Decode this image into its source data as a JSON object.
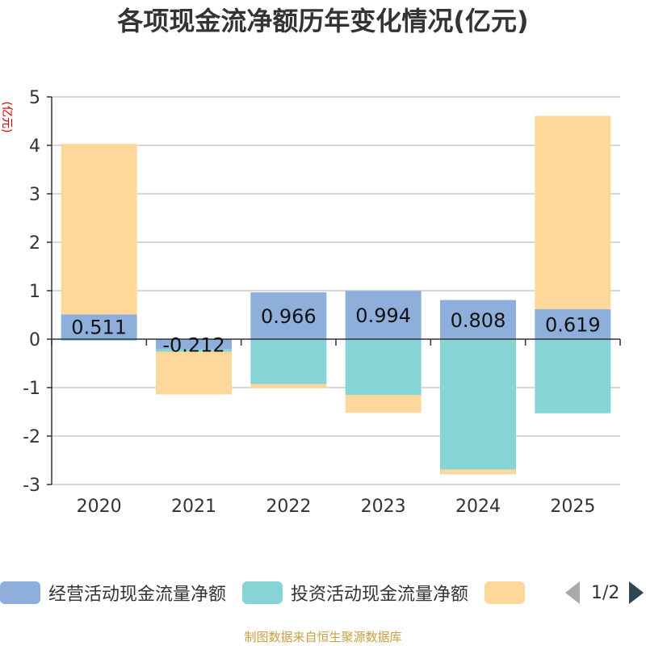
{
  "chart_data": {
    "type": "bar",
    "stacked": true,
    "title": "各项现金流净额历年变化情况(亿元)",
    "ylabel": "(亿元)",
    "xlabel": "",
    "ylim": [
      -3,
      5
    ],
    "yticks": [
      5,
      4,
      3,
      2,
      1,
      0,
      -1,
      -2,
      -3
    ],
    "categories": [
      "2020",
      "2021",
      "2022",
      "2023",
      "2024",
      "2025"
    ],
    "series": [
      {
        "name": "经营活动现金流量净额",
        "color": "#8eaedb",
        "values": [
          0.511,
          -0.212,
          0.966,
          0.994,
          0.808,
          0.619
        ],
        "labels": [
          "0.511",
          "-0.212",
          "0.966",
          "0.994",
          "0.808",
          "0.619"
        ]
      },
      {
        "name": "投资活动现金流量净额",
        "color": "#86d4d6",
        "values": [
          -0.03,
          -0.05,
          -0.93,
          -1.15,
          -2.69,
          -1.53
        ]
      },
      {
        "name": "",
        "color": "#fdd89a",
        "values": [
          3.52,
          -0.88,
          -0.08,
          -0.37,
          -0.1,
          3.99
        ]
      }
    ],
    "legend": {
      "page": "1/2"
    }
  },
  "footer": "制图数据来自恒生聚源数据库"
}
